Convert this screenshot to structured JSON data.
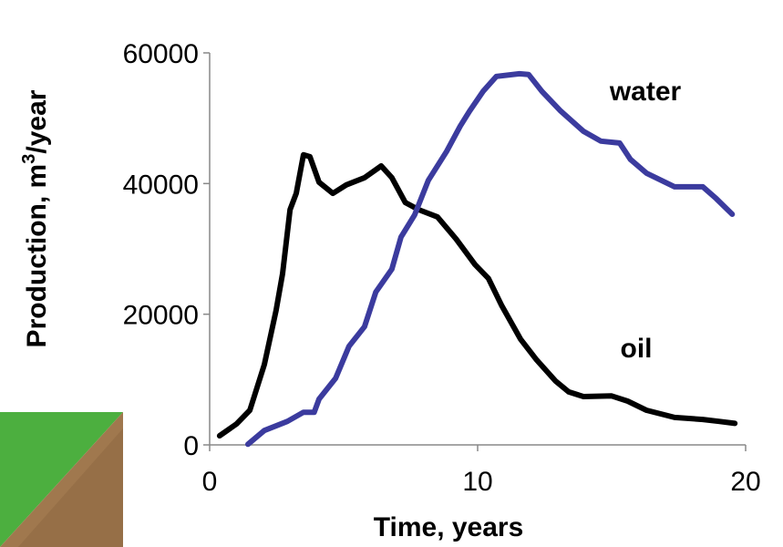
{
  "chart_data": {
    "type": "line",
    "x_label": "Time, years",
    "y_label": [
      "Production, m",
      "3",
      "/year"
    ],
    "xlim": [
      0,
      20
    ],
    "xticks": [
      0,
      10,
      20
    ],
    "ylim": [
      0,
      60000
    ],
    "yticks": [
      0,
      20000,
      40000,
      60000
    ],
    "grid": false,
    "series": [
      {
        "name": "oil",
        "color": "#000000",
        "x": [
          0.37,
          1.0,
          1.5,
          2.04,
          2.48,
          2.72,
          3.0,
          3.23,
          3.5,
          3.74,
          4.08,
          4.6,
          5.1,
          5.78,
          6.4,
          6.8,
          7.3,
          7.8,
          8.5,
          9.2,
          9.9,
          10.4,
          10.9,
          11.6,
          12.2,
          12.9,
          13.4,
          13.95,
          15.0,
          15.6,
          16.3,
          17.35,
          18.4,
          19.0,
          19.6
        ],
        "values": [
          1400,
          3200,
          5300,
          12300,
          20600,
          26200,
          36000,
          38500,
          44400,
          44100,
          40200,
          38500,
          39800,
          40900,
          42700,
          40900,
          37100,
          36000,
          34900,
          31500,
          27600,
          25500,
          21300,
          16200,
          13000,
          9800,
          8100,
          7400,
          7500,
          6700,
          5300,
          4200,
          3900,
          3600,
          3300
        ]
      },
      {
        "name": "water",
        "color": "#3b3b9e",
        "x": [
          1.43,
          2.04,
          2.9,
          3.5,
          3.9,
          4.08,
          4.7,
          5.2,
          5.78,
          6.2,
          6.8,
          7.14,
          7.65,
          8.16,
          8.84,
          9.35,
          9.7,
          10.2,
          10.7,
          11.56,
          11.9,
          12.4,
          13.1,
          13.95,
          14.6,
          15.3,
          15.7,
          16.3,
          17.35,
          17.85,
          18.4,
          18.9,
          19.5
        ],
        "values": [
          100,
          2200,
          3600,
          5000,
          5000,
          7000,
          10200,
          15100,
          18100,
          23400,
          26900,
          31800,
          35200,
          40500,
          44900,
          48800,
          51100,
          54100,
          56400,
          56800,
          56700,
          54100,
          51100,
          48000,
          46500,
          46200,
          43700,
          41600,
          39500,
          39500,
          39500,
          37700,
          35300
        ]
      }
    ]
  }
}
